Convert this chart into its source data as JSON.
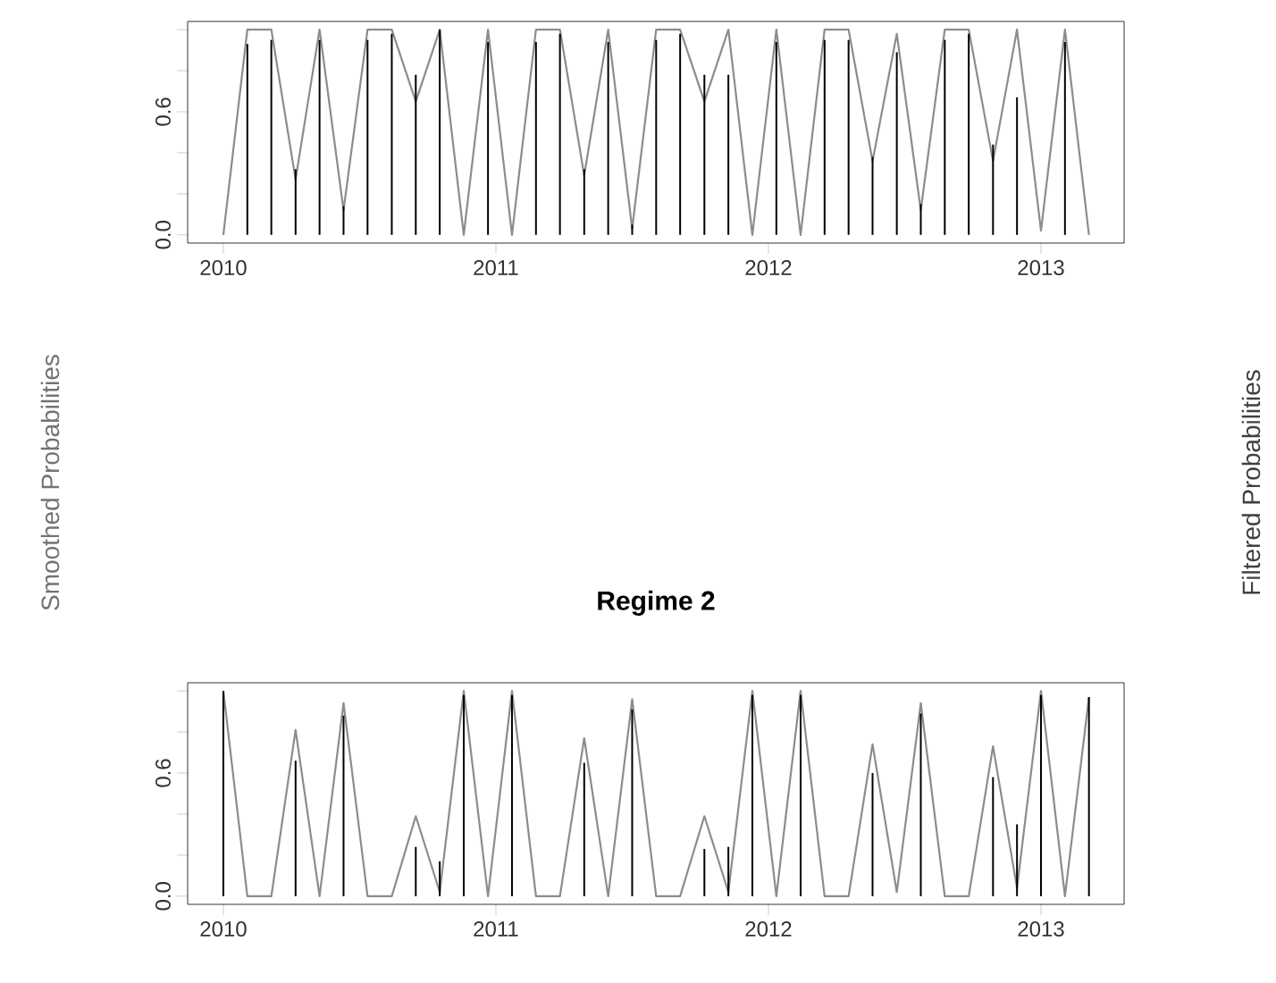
{
  "chart_data": [
    {
      "type": "line",
      "x": [
        2010,
        2010.088,
        2010.176,
        2010.265,
        2010.353,
        2010.441,
        2010.529,
        2010.618,
        2010.706,
        2010.794,
        2010.882,
        2010.971,
        2011.059,
        2011.147,
        2011.235,
        2011.324,
        2011.412,
        2011.5,
        2011.588,
        2011.676,
        2011.765,
        2011.853,
        2011.941,
        2012.029,
        2012.118,
        2012.206,
        2012.294,
        2012.382,
        2012.471,
        2012.559,
        2012.647,
        2012.735,
        2012.824,
        2012.912,
        2013.0,
        2013.088,
        2013.176
      ],
      "series": [
        {
          "color": "#8c8c8c",
          "values": [
            0,
            1,
            1,
            0.27,
            1,
            0.12,
            1,
            1,
            0.65,
            1,
            0,
            1,
            0,
            1,
            1,
            0.29,
            1,
            0.03,
            1,
            1,
            0.65,
            1,
            0,
            1,
            0,
            1,
            1,
            0.36,
            0.98,
            0.12,
            1,
            1,
            0.36,
            1,
            0.02,
            1,
            0
          ]
        },
        {
          "type": "bar",
          "color": "#000000",
          "values": [
            0,
            0.93,
            0.95,
            0.32,
            0.95,
            0.14,
            0.95,
            0.98,
            0.78,
            1,
            0,
            0.94,
            0,
            0.94,
            0.98,
            0.32,
            0.94,
            0.05,
            0.95,
            0.98,
            0.78,
            0.78,
            0,
            0.94,
            0,
            0.95,
            0.95,
            0.38,
            0.89,
            0.15,
            0.95,
            0.98,
            0.44,
            0.67,
            0,
            0.94,
            0
          ]
        }
      ],
      "xlim": [
        2009.869,
        2013.305
      ],
      "ylim": [
        -0.04,
        1.04
      ],
      "xticks": [
        2010,
        2011,
        2012,
        2013
      ],
      "yticks": [
        {
          "value": 0,
          "label": "0.0"
        },
        {
          "value": 0.2,
          "label": null
        },
        {
          "value": 0.4,
          "label": null
        },
        {
          "value": 0.6,
          "label": "0.6"
        },
        {
          "value": 0.8,
          "label": null
        },
        {
          "value": 1.0,
          "label": null
        }
      ],
      "annotations": [
        "Smoothed Probabilities",
        "Filtered Probabilities"
      ]
    },
    {
      "type": "line",
      "title": "Regime 2",
      "x": [
        2010,
        2010.088,
        2010.176,
        2010.265,
        2010.353,
        2010.441,
        2010.529,
        2010.618,
        2010.706,
        2010.794,
        2010.882,
        2010.971,
        2011.059,
        2011.147,
        2011.235,
        2011.324,
        2011.412,
        2011.5,
        2011.588,
        2011.676,
        2011.765,
        2011.853,
        2011.941,
        2012.029,
        2012.118,
        2012.206,
        2012.294,
        2012.382,
        2012.471,
        2012.559,
        2012.647,
        2012.735,
        2012.824,
        2012.912,
        2013.0,
        2013.088,
        2013.176
      ],
      "series": [
        {
          "color": "#8c8c8c",
          "values": [
            1,
            0,
            0,
            0.81,
            0,
            0.94,
            0,
            0,
            0.39,
            0.02,
            1,
            0,
            1,
            0,
            0,
            0.77,
            0,
            0.96,
            0,
            0,
            0.39,
            0.02,
            1,
            0,
            1,
            0,
            0,
            0.74,
            0.02,
            0.94,
            0,
            0,
            0.73,
            0.04,
            1,
            0,
            0.97
          ]
        },
        {
          "type": "bar",
          "color": "#000000",
          "values": [
            1,
            0,
            0,
            0.66,
            0,
            0.88,
            0,
            0,
            0.24,
            0.17,
            0.98,
            0,
            0.98,
            0,
            0,
            0.65,
            0,
            0.91,
            0,
            0,
            0.23,
            0.24,
            0.98,
            0,
            0.98,
            0,
            0,
            0.6,
            0,
            0.89,
            0,
            0,
            0.58,
            0.35,
            0.98,
            0,
            0.97
          ]
        }
      ],
      "xlim": [
        2009.869,
        2013.305
      ],
      "ylim": [
        -0.04,
        1.04
      ],
      "xticks": [
        2010,
        2011,
        2012,
        2013
      ],
      "yticks": [
        {
          "value": 0,
          "label": "0.0"
        },
        {
          "value": 0.2,
          "label": null
        },
        {
          "value": 0.4,
          "label": null
        },
        {
          "value": 0.6,
          "label": "0.6"
        },
        {
          "value": 0.8,
          "label": null
        },
        {
          "value": 1.0,
          "label": null
        }
      ]
    }
  ]
}
